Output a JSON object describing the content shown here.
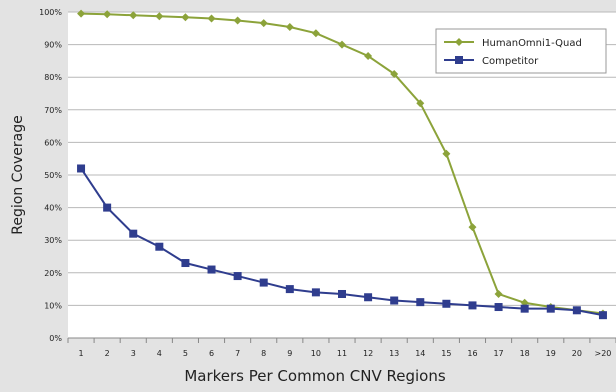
{
  "chart_data": {
    "type": "line",
    "title": "",
    "xlabel": "Markers Per Common CNV Regions",
    "ylabel": "Region Coverage",
    "categories": [
      "1",
      "2",
      "3",
      "4",
      "5",
      "6",
      "7",
      "8",
      "9",
      "10",
      "11",
      "12",
      "13",
      "14",
      "15",
      "16",
      "17",
      "18",
      "19",
      "20",
      ">20"
    ],
    "ylim": [
      0,
      100
    ],
    "y_ticks": [
      0,
      10,
      20,
      30,
      40,
      50,
      60,
      70,
      80,
      90,
      100
    ],
    "y_tick_labels": [
      "0%",
      "10%",
      "20%",
      "30%",
      "40%",
      "50%",
      "60%",
      "70%",
      "80%",
      "90%",
      "100%"
    ],
    "grid": "horizontal",
    "legend_position": "top-right",
    "series": [
      {
        "name": "HumanOmni1-Quad",
        "color": "#8ca33a",
        "marker": "diamond",
        "values": [
          99.5,
          99.3,
          99.0,
          98.7,
          98.4,
          98.0,
          97.4,
          96.6,
          95.4,
          93.5,
          90.0,
          86.5,
          81.0,
          72.0,
          56.5,
          34.0,
          13.5,
          10.8,
          9.5,
          8.5,
          7.5
        ]
      },
      {
        "name": "Competitor",
        "color": "#2f3d8e",
        "marker": "square",
        "values": [
          52.0,
          40.0,
          32.0,
          28.0,
          23.0,
          21.0,
          19.0,
          17.0,
          15.0,
          14.0,
          13.5,
          12.5,
          11.5,
          11.0,
          10.5,
          10.0,
          9.5,
          9.0,
          9.0,
          8.5,
          7.0
        ]
      }
    ]
  }
}
